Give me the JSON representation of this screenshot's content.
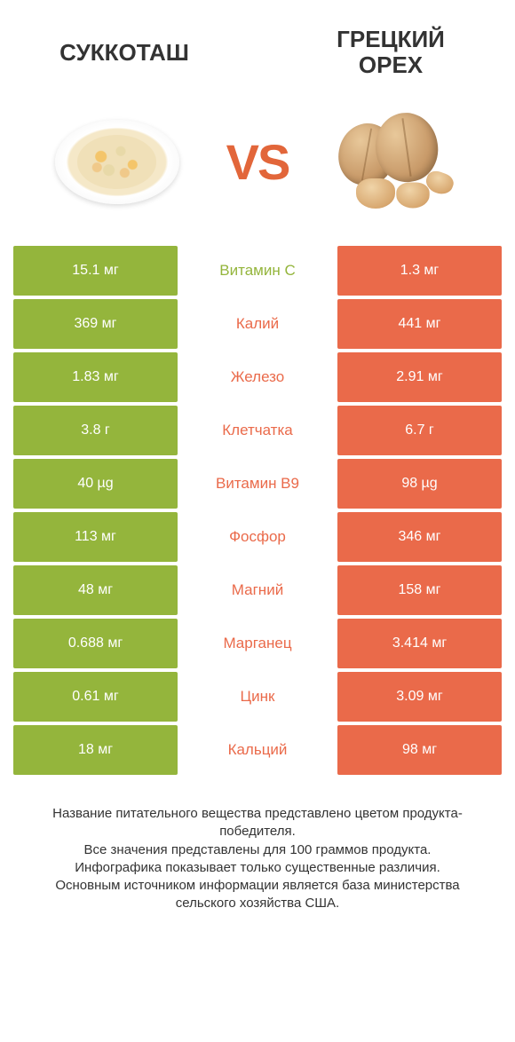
{
  "colors": {
    "left": "#94b53c",
    "right": "#ea6a4a",
    "vs": "#e2663a"
  },
  "titles": {
    "left": "Суккоташ",
    "right": "Грецкий орех",
    "vs": "VS"
  },
  "rows": [
    {
      "label": "Витамин C",
      "left": "15.1 мг",
      "right": "1.3 мг",
      "winner": "left"
    },
    {
      "label": "Калий",
      "left": "369 мг",
      "right": "441 мг",
      "winner": "right"
    },
    {
      "label": "Железо",
      "left": "1.83 мг",
      "right": "2.91 мг",
      "winner": "right"
    },
    {
      "label": "Клетчатка",
      "left": "3.8 г",
      "right": "6.7 г",
      "winner": "right"
    },
    {
      "label": "Витамин B9",
      "left": "40 µg",
      "right": "98 µg",
      "winner": "right"
    },
    {
      "label": "Фосфор",
      "left": "113 мг",
      "right": "346 мг",
      "winner": "right"
    },
    {
      "label": "Магний",
      "left": "48 мг",
      "right": "158 мг",
      "winner": "right"
    },
    {
      "label": "Марганец",
      "left": "0.688 мг",
      "right": "3.414 мг",
      "winner": "right"
    },
    {
      "label": "Цинк",
      "left": "0.61 мг",
      "right": "3.09 мг",
      "winner": "right"
    },
    {
      "label": "Кальций",
      "left": "18 мг",
      "right": "98 мг",
      "winner": "right"
    }
  ],
  "footer": {
    "line1": "Название питательного вещества представлено цветом продукта-победителя.",
    "line2": "Все значения представлены для 100 граммов продукта.",
    "line3": "Инфографика показывает только существенные различия.",
    "line4": "Основным источником информации является база министерства сельского хозяйства США."
  }
}
